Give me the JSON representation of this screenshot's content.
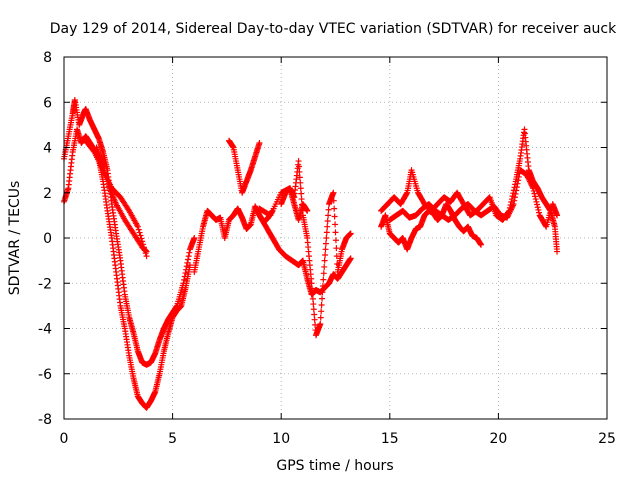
{
  "chart_data": {
    "type": "scatter",
    "title": "Day 129 of 2014, Sidereal Day-to-day VTEC variation (SDTVAR) for receiver auck",
    "xlabel": "GPS time / hours",
    "ylabel": "SDTVAR / TECUs",
    "xlim": [
      0,
      25
    ],
    "ylim": [
      -8,
      8
    ],
    "xticks": [
      0,
      5,
      10,
      15,
      20,
      25
    ],
    "yticks": [
      -8,
      -6,
      -4,
      -2,
      0,
      2,
      4,
      6,
      8
    ],
    "grid": true,
    "marker": "+",
    "color": "#ff0000",
    "series": [
      {
        "name": "segment-a-upper",
        "x": [
          0.0,
          0.2,
          0.4,
          0.5,
          0.7,
          0.9,
          1.0,
          1.2,
          1.4,
          1.6,
          1.8,
          2.0,
          2.2,
          2.4,
          2.6,
          2.8,
          3.0,
          3.2,
          3.4,
          3.6,
          3.8,
          4.0,
          4.2,
          4.4,
          4.6,
          4.8,
          5.0,
          5.2,
          5.5,
          5.8,
          6.0
        ],
        "y": [
          3.5,
          4.5,
          5.5,
          6.1,
          5.0,
          5.5,
          5.7,
          5.2,
          4.8,
          4.4,
          3.8,
          3.0,
          1.5,
          0.2,
          -1.0,
          -2.5,
          -3.5,
          -4.2,
          -5.0,
          -5.5,
          -5.6,
          -5.5,
          -5.1,
          -4.5,
          -4.0,
          -3.6,
          -3.3,
          -3.0,
          -2.0,
          -0.5,
          0.0
        ]
      },
      {
        "name": "segment-a-lower",
        "x": [
          0.0,
          0.2,
          0.4,
          0.6,
          0.8,
          1.0,
          1.2,
          1.4,
          1.6,
          1.8,
          2.0,
          2.2,
          2.4,
          2.6,
          2.8,
          3.0,
          3.2,
          3.4,
          3.6,
          3.8,
          4.0,
          4.2,
          4.4,
          4.6,
          4.8,
          5.0,
          5.2,
          5.4,
          5.6,
          5.8
        ],
        "y": [
          1.6,
          2.2,
          3.8,
          4.8,
          4.2,
          4.5,
          4.2,
          3.9,
          3.5,
          2.5,
          1.2,
          0.0,
          -1.5,
          -3.0,
          -4.0,
          -5.2,
          -6.2,
          -7.0,
          -7.3,
          -7.5,
          -7.2,
          -6.8,
          -6.0,
          -5.0,
          -4.2,
          -3.5,
          -3.2,
          -3.0,
          -2.2,
          -1.2
        ]
      },
      {
        "name": "segment-a-branch",
        "x": [
          1.0,
          1.4,
          1.8,
          2.2,
          2.6,
          3.0,
          3.4,
          3.8
        ],
        "y": [
          4.3,
          3.8,
          3.0,
          2.2,
          1.8,
          1.2,
          0.5,
          -0.8
        ]
      },
      {
        "name": "segment-a-branch-2",
        "x": [
          1.5,
          1.8,
          2.1,
          2.4,
          2.8,
          3.2,
          3.6,
          3.8
        ],
        "y": [
          4.0,
          3.2,
          2.2,
          1.5,
          0.8,
          0.2,
          -0.4,
          -0.6
        ]
      },
      {
        "name": "segment-b-left",
        "x": [
          6.0,
          6.2,
          6.4,
          6.6,
          6.8,
          7.0,
          7.2,
          7.4,
          7.6,
          7.8,
          8.0,
          8.2,
          8.4,
          8.6,
          8.8,
          9.0,
          9.2,
          9.4,
          9.6
        ],
        "y": [
          -1.5,
          -0.5,
          0.5,
          1.2,
          1.0,
          0.8,
          0.9,
          0.0,
          0.8,
          1.0,
          1.3,
          0.9,
          0.4,
          0.6,
          1.4,
          1.0,
          0.7,
          0.9,
          1.2
        ]
      },
      {
        "name": "segment-b-spike",
        "x": [
          7.6,
          7.8,
          8.0,
          8.2,
          8.4,
          8.6,
          8.8,
          9.0
        ],
        "y": [
          4.3,
          4.0,
          3.0,
          2.0,
          2.5,
          3.0,
          3.6,
          4.2
        ]
      },
      {
        "name": "segment-b-mid",
        "x": [
          9.0,
          9.3,
          9.6,
          9.9,
          10.2,
          10.5,
          10.8,
          11.0,
          11.2,
          11.4,
          11.6,
          11.8,
          12.0,
          12.2,
          12.4,
          12.6,
          12.8,
          13.0,
          13.2
        ],
        "y": [
          1.0,
          0.5,
          0.0,
          -0.5,
          -0.8,
          -1.0,
          -1.2,
          -1.0,
          -1.8,
          -2.5,
          -2.3,
          -2.4,
          -2.2,
          -2.0,
          -1.6,
          -1.8,
          -1.5,
          -1.2,
          -0.9
        ]
      },
      {
        "name": "segment-b-spike-2",
        "x": [
          10.0,
          10.2,
          10.4,
          10.6,
          10.8,
          11.0,
          11.2,
          11.4,
          11.6,
          11.8,
          12.0,
          12.2,
          12.4,
          12.6,
          12.8,
          13.0,
          13.2
        ],
        "y": [
          1.5,
          2.0,
          2.2,
          1.8,
          3.4,
          1.0,
          0.0,
          -2.0,
          -4.3,
          -3.8,
          -1.0,
          1.5,
          2.0,
          -1.5,
          -0.5,
          0.0,
          0.2
        ]
      },
      {
        "name": "segment-b-upper",
        "x": [
          9.0,
          9.5,
          10.0,
          10.4,
          10.6,
          10.8,
          11.0,
          11.2
        ],
        "y": [
          1.3,
          1.0,
          2.0,
          2.2,
          1.5,
          0.8,
          1.5,
          1.2
        ]
      },
      {
        "name": "segment-c",
        "x": [
          14.6,
          14.8,
          15.0,
          15.2,
          15.4,
          15.6,
          15.8,
          16.0,
          16.2,
          16.4,
          16.6,
          16.8,
          17.0,
          17.2,
          17.4,
          17.6,
          17.8,
          18.0,
          18.2,
          18.4,
          18.6,
          18.8,
          19.0,
          19.2
        ],
        "y": [
          0.5,
          1.0,
          0.2,
          0.0,
          -0.2,
          0.0,
          -0.5,
          0.0,
          0.4,
          0.5,
          1.0,
          1.2,
          1.1,
          0.8,
          1.0,
          1.5,
          1.2,
          0.8,
          0.5,
          0.3,
          0.5,
          0.1,
          0.0,
          -0.3
        ]
      },
      {
        "name": "segment-c-upper",
        "x": [
          14.6,
          14.9,
          15.2,
          15.5,
          15.8,
          16.0,
          16.3,
          16.6,
          16.9,
          17.2,
          17.5,
          17.8,
          18.1,
          18.4,
          18.7,
          19.0,
          19.3,
          19.6,
          19.9,
          20.2,
          20.5,
          20.8,
          21.0,
          21.2,
          21.4,
          21.6,
          21.8,
          22.0,
          22.2,
          22.4,
          22.6,
          22.7
        ],
        "y": [
          1.2,
          1.5,
          1.8,
          1.5,
          2.0,
          3.0,
          2.0,
          1.5,
          1.2,
          1.5,
          1.8,
          1.6,
          2.0,
          1.5,
          1.0,
          1.2,
          1.5,
          1.8,
          1.0,
          0.8,
          1.2,
          2.5,
          3.5,
          4.8,
          3.0,
          2.5,
          2.2,
          1.8,
          1.5,
          1.2,
          0.5,
          -0.6
        ]
      },
      {
        "name": "segment-c-lower",
        "x": [
          15.0,
          15.3,
          15.6,
          15.9,
          16.2,
          16.5,
          16.8,
          17.1,
          17.4,
          17.7,
          18.0,
          18.3,
          18.6,
          18.9,
          19.2,
          19.5,
          19.8,
          20.1,
          20.4,
          20.7,
          21.0,
          21.3,
          21.6,
          21.9,
          22.2,
          22.5,
          22.7
        ],
        "y": [
          0.8,
          1.0,
          1.2,
          0.9,
          1.0,
          1.3,
          1.5,
          1.2,
          1.0,
          0.8,
          1.0,
          1.3,
          1.5,
          1.2,
          1.0,
          1.2,
          1.4,
          1.0,
          0.9,
          1.5,
          3.0,
          2.8,
          2.2,
          1.0,
          0.5,
          1.5,
          1.0
        ]
      }
    ]
  }
}
